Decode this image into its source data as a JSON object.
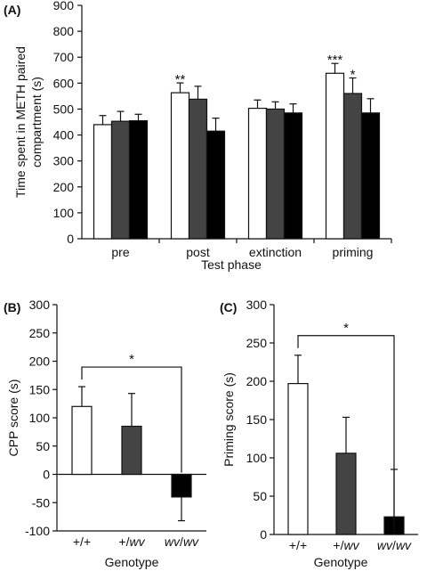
{
  "chart_data": [
    {
      "panel": "(A)",
      "type": "bar",
      "xlabel": "Test phase",
      "ylabel": "Time spent in METH paired compartment (s)",
      "ylim": [
        0,
        900
      ],
      "yticks": [
        0,
        100,
        200,
        300,
        400,
        500,
        600,
        700,
        800,
        900
      ],
      "categories": [
        "pre",
        "post",
        "extinction",
        "priming"
      ],
      "series_colors": [
        "#ffffff",
        "#444444",
        "#000000"
      ],
      "series": [
        {
          "values": [
            440,
            563,
            503,
            638
          ],
          "errors": [
            35,
            38,
            32,
            38
          ]
        },
        {
          "values": [
            453,
            538,
            500,
            560
          ],
          "errors": [
            38,
            50,
            28,
            60
          ]
        },
        {
          "values": [
            455,
            415,
            485,
            485
          ],
          "errors": [
            25,
            50,
            35,
            55
          ]
        }
      ],
      "annotations": [
        {
          "category": 1,
          "series": 0,
          "text": "**"
        },
        {
          "category": 3,
          "series": 0,
          "text": "***"
        },
        {
          "category": 3,
          "series": 1,
          "text": "*"
        }
      ]
    },
    {
      "panel": "(B)",
      "type": "bar",
      "xlabel": "Genotype",
      "ylabel": "CPP score (s)",
      "ylim": [
        -100,
        300
      ],
      "yticks": [
        -100,
        -50,
        0,
        50,
        100,
        150,
        200,
        250,
        300
      ],
      "categories": [
        "+/+",
        "+/wv",
        "wv/wv"
      ],
      "colors": [
        "#ffffff",
        "#444444",
        "#000000"
      ],
      "values": [
        120,
        85,
        -40
      ],
      "errors": [
        35,
        58,
        42
      ],
      "significance": {
        "from": 0,
        "to": 2,
        "text": "*"
      }
    },
    {
      "panel": "(C)",
      "type": "bar",
      "xlabel": "Genotype",
      "ylabel": "Priming score (s)",
      "ylim": [
        0,
        300
      ],
      "yticks": [
        0,
        50,
        100,
        150,
        200,
        250,
        300
      ],
      "categories": [
        "+/+",
        "+/wv",
        "wv/wv"
      ],
      "colors": [
        "#ffffff",
        "#444444",
        "#000000"
      ],
      "values": [
        197,
        106,
        23
      ],
      "errors": [
        37,
        47,
        62
      ],
      "significance": {
        "from": 0,
        "to": 2,
        "text": "*"
      }
    }
  ]
}
